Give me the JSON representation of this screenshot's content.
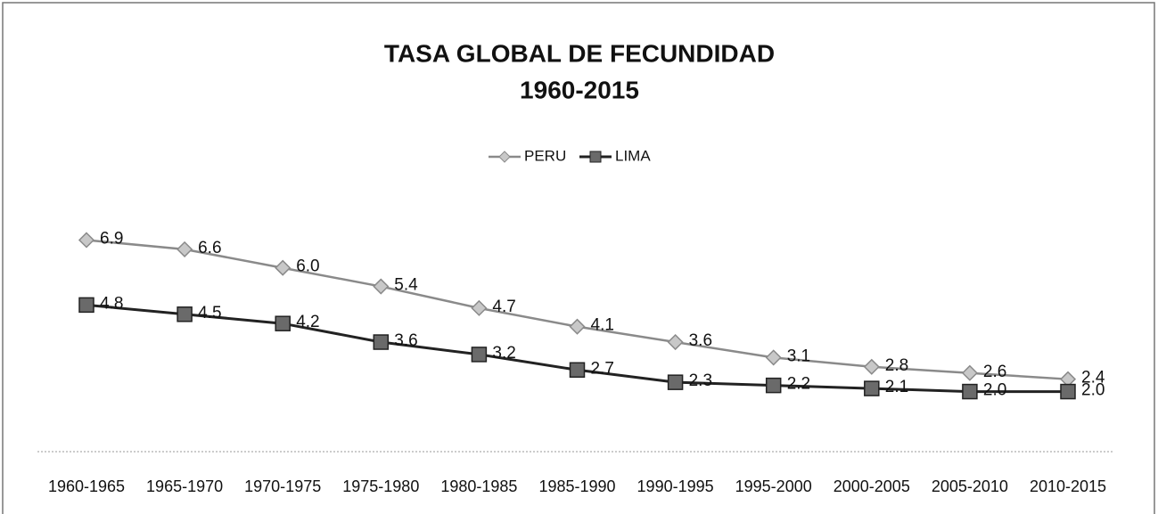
{
  "chart_data": {
    "type": "line",
    "title": "TASA GLOBAL DE FECUNDIDAD",
    "subtitle": "1960-2015",
    "categories": [
      "1960-1965",
      "1965-1970",
      "1970-1975",
      "1975-1980",
      "1980-1985",
      "1985-1990",
      "1990-1995",
      "1995-2000",
      "2000-2005",
      "2005-2010",
      "2010-2015"
    ],
    "series": [
      {
        "name": "PERU",
        "color": "#8a8a8a",
        "marker": "diamond",
        "values": [
          6.9,
          6.6,
          6.0,
          5.4,
          4.7,
          4.1,
          3.6,
          3.1,
          2.8,
          2.6,
          2.4
        ],
        "value_labels": [
          "6.9",
          "6.6",
          "6.0",
          "5.4",
          "4.7",
          "4.1",
          "3.6",
          "3.1",
          "2.8",
          "2.6",
          "2.4"
        ]
      },
      {
        "name": "LIMA",
        "color": "#222222",
        "marker": "square",
        "values": [
          4.8,
          4.5,
          4.2,
          3.6,
          3.2,
          2.7,
          2.3,
          2.2,
          2.1,
          2.0,
          2.0
        ],
        "value_labels": [
          "4.8",
          "4.5",
          "4.2",
          "3.6",
          "3.2",
          "2.7",
          "2.3",
          "2.2",
          "2.1",
          "2.0",
          "2.0"
        ]
      }
    ],
    "ylim": [
      0,
      7
    ],
    "legend": "top"
  }
}
